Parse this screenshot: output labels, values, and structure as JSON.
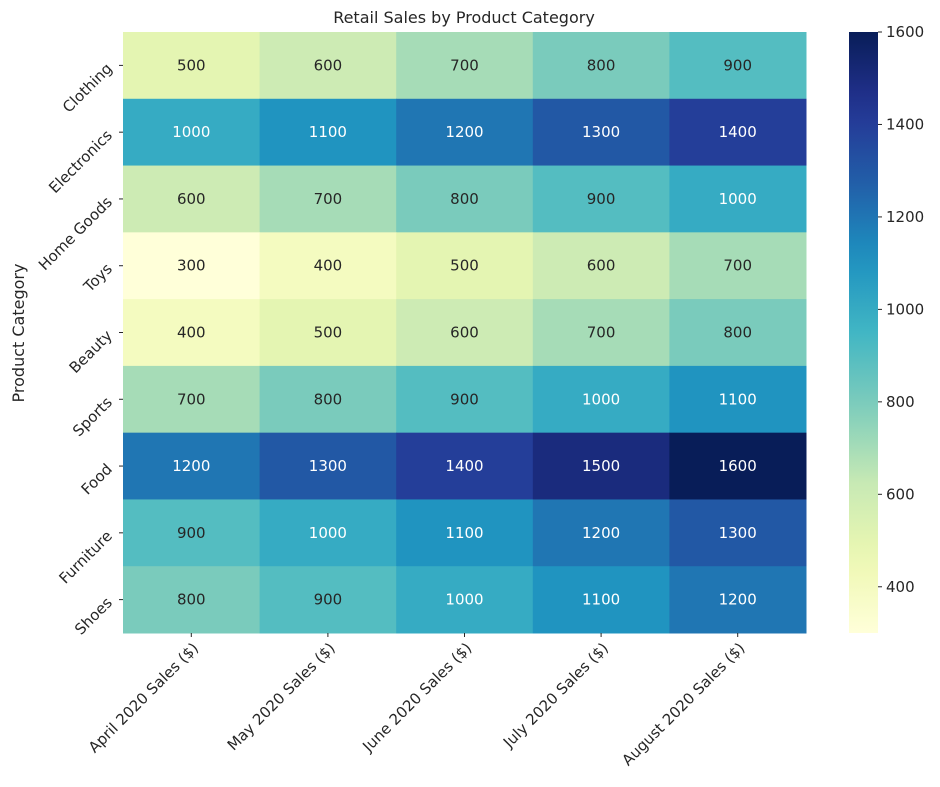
{
  "chart_data": {
    "type": "heatmap",
    "title": "Retail Sales by Product Category",
    "ylabel": "Product Category",
    "xlabel": "",
    "columns": [
      "April 2020 Sales ($)",
      "May 2020 Sales ($)",
      "June 2020 Sales ($)",
      "July 2020 Sales ($)",
      "August 2020 Sales ($)"
    ],
    "rows": [
      "Clothing",
      "Electronics",
      "Home Goods",
      "Toys",
      "Beauty",
      "Sports",
      "Food",
      "Furniture",
      "Shoes"
    ],
    "values": [
      [
        500,
        600,
        700,
        800,
        900
      ],
      [
        1000,
        1100,
        1200,
        1300,
        1400
      ],
      [
        600,
        700,
        800,
        900,
        1000
      ],
      [
        300,
        400,
        500,
        600,
        700
      ],
      [
        400,
        500,
        600,
        700,
        800
      ],
      [
        700,
        800,
        900,
        1000,
        1100
      ],
      [
        1200,
        1300,
        1400,
        1500,
        1600
      ],
      [
        900,
        1000,
        1100,
        1200,
        1300
      ],
      [
        800,
        900,
        1000,
        1100,
        1200
      ]
    ],
    "vmin": 300,
    "vmax": 1600,
    "colormap": "YlGnBu",
    "colorbar_ticks": [
      400,
      600,
      800,
      1000,
      1200,
      1400,
      1600
    ],
    "annotated": true
  }
}
